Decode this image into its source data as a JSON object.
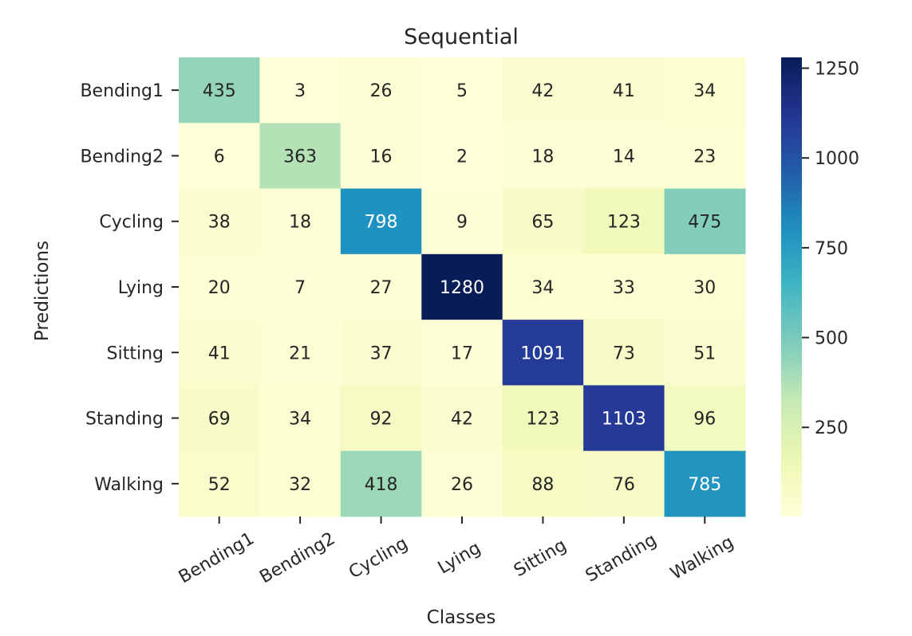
{
  "chart_data": {
    "type": "heatmap",
    "title": "Sequential",
    "xlabel": "Classes",
    "ylabel": "Predictions",
    "x_categories": [
      "Bending1",
      "Bending2",
      "Cycling",
      "Lying",
      "Sitting",
      "Standing",
      "Walking"
    ],
    "y_categories": [
      "Bending1",
      "Bending2",
      "Cycling",
      "Lying",
      "Sitting",
      "Standing",
      "Walking"
    ],
    "values": [
      [
        435,
        3,
        26,
        5,
        42,
        41,
        34
      ],
      [
        6,
        363,
        16,
        2,
        18,
        14,
        23
      ],
      [
        38,
        18,
        798,
        9,
        65,
        123,
        475
      ],
      [
        20,
        7,
        27,
        1280,
        34,
        33,
        30
      ],
      [
        41,
        21,
        37,
        17,
        1091,
        73,
        51
      ],
      [
        69,
        34,
        92,
        42,
        123,
        1103,
        96
      ],
      [
        52,
        32,
        418,
        26,
        88,
        76,
        785
      ]
    ],
    "colormap": "YlGnBu",
    "color_range": [
      2,
      1280
    ],
    "colorbar_ticks": [
      250,
      500,
      750,
      1000,
      1250
    ],
    "annotation_colors": {
      "dark": "#262626",
      "light": "#ffffff"
    },
    "x_tick_rotation_deg": -30,
    "grid": false
  }
}
